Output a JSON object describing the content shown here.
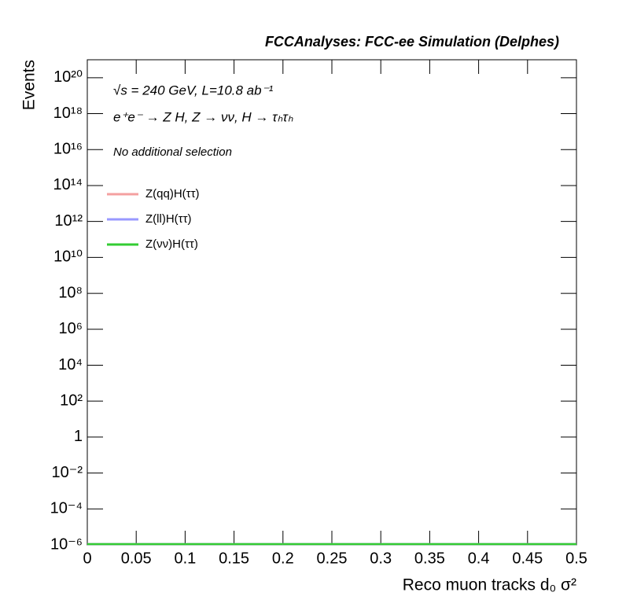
{
  "chart_data": {
    "type": "histogram",
    "title": "FCCAnalyses: FCC-ee Simulation (Delphes)",
    "annotations": [
      "√s = 240 GeV, L=10.8 ab⁻¹",
      "e⁺e⁻ → Z H, Z → νν, H → τₕτₕ",
      "No additional selection"
    ],
    "x_label": "Reco muon tracks d₀ σ²",
    "y_label": "Events",
    "bins": [
      0,
      0.05,
      0.1,
      0.15,
      0.2,
      0.25,
      0.3,
      0.35,
      0.4,
      0.45,
      0.5
    ],
    "series": [
      {
        "name": "Z(qq)H(ττ)",
        "color": "#f4a0a0",
        "values": [
          0,
          0,
          0,
          0,
          0,
          0,
          0,
          0,
          0,
          0
        ]
      },
      {
        "name": "Z(ll)H(ττ)",
        "color": "#9999ff",
        "values": [
          0,
          0,
          0,
          0,
          0,
          0,
          0,
          0,
          0,
          0
        ]
      },
      {
        "name": "Z(νν)H(ττ)",
        "color": "#33cc33",
        "values": [
          0,
          0,
          0,
          0,
          0,
          0,
          0,
          0,
          0,
          0
        ]
      }
    ],
    "xlim": [
      0,
      0.5
    ],
    "xticks": [
      0,
      0.05,
      0.1,
      0.15,
      0.2,
      0.25,
      0.3,
      0.35,
      0.4,
      0.45,
      0.5
    ],
    "ylim": [
      1e-06,
      1e+21
    ],
    "log_y": true,
    "yticks": [
      {
        "value": 1e-06,
        "label": "10⁻⁶"
      },
      {
        "value": 0.0001,
        "label": "10⁻⁴"
      },
      {
        "value": 0.01,
        "label": "10⁻²"
      },
      1,
      {
        "value": 100,
        "label": "10²"
      },
      {
        "value": 10000,
        "label": "10⁴"
      },
      {
        "value": 1000000.0,
        "label": "10⁶"
      },
      {
        "value": 100000000.0,
        "label": "10⁸"
      },
      {
        "value": 10000000000.0,
        "label": "10¹⁰"
      },
      {
        "value": 1000000000000.0,
        "label": "10¹²"
      },
      {
        "value": 100000000000000.0,
        "label": "10¹⁴"
      },
      {
        "value": 1e+16,
        "label": "10¹⁶"
      },
      {
        "value": 1e+18,
        "label": "10¹⁸"
      },
      {
        "value": 1e+20,
        "label": "10²⁰"
      }
    ],
    "legend": "upper left"
  }
}
